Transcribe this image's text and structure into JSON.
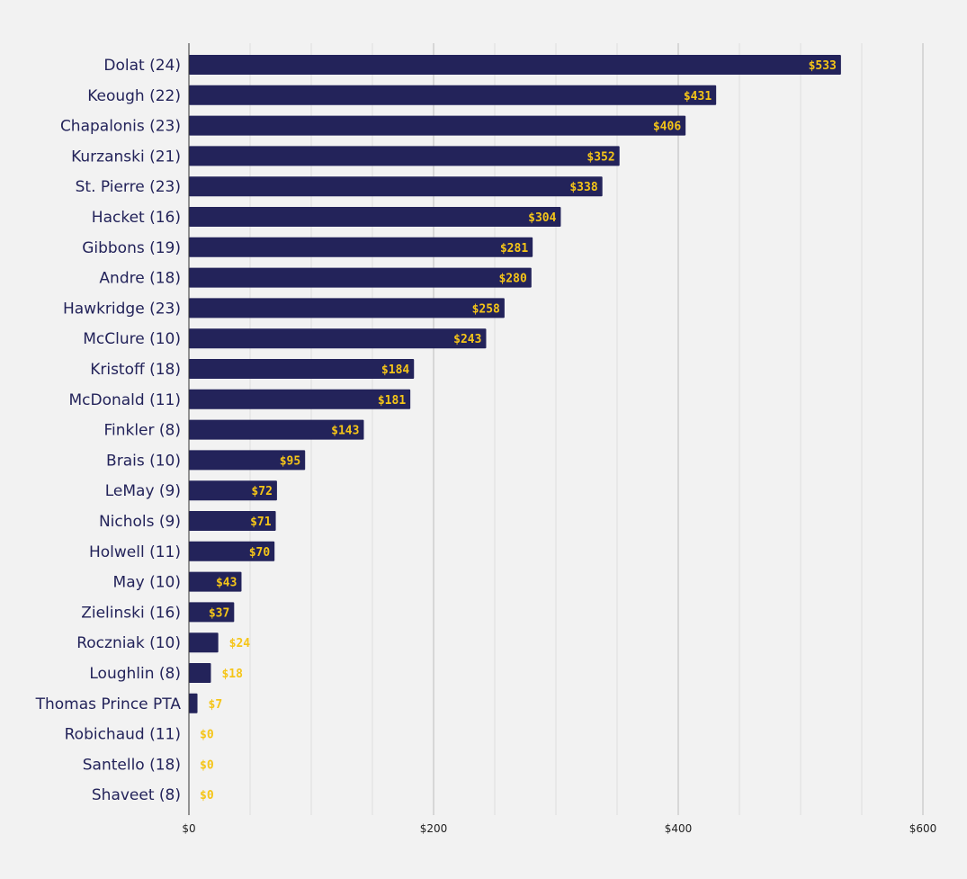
{
  "colors": {
    "background": "#f2f2f2",
    "bar": "#23235a",
    "value_label": "#f5c518",
    "major_grid": "#bcbcbc",
    "minor_grid": "#dddddd",
    "axis": "#333333",
    "category_text": "#23235a"
  },
  "chart_data": {
    "type": "bar",
    "orientation": "horizontal",
    "title": "",
    "xlabel": "",
    "ylabel": "",
    "categories": [
      "Dolat (24)",
      "Keough (22)",
      "Chapalonis (23)",
      "Kurzanski (21)",
      "St. Pierre (23)",
      "Hacket (16)",
      "Gibbons (19)",
      "Andre (18)",
      "Hawkridge (23)",
      "McClure (10)",
      "Kristoff (18)",
      "McDonald (11)",
      "Finkler (8)",
      "Brais (10)",
      "LeMay (9)",
      "Nichols (9)",
      "Holwell (11)",
      "May (10)",
      "Zielinski (16)",
      "Roczniak (10)",
      "Loughlin (8)",
      "Thomas Prince PTA",
      "Robichaud (11)",
      "Santello (18)",
      "Shaveet (8)"
    ],
    "values": [
      533,
      431,
      406,
      352,
      338,
      304,
      281,
      280,
      258,
      243,
      184,
      181,
      143,
      95,
      72,
      71,
      70,
      43,
      37,
      24,
      18,
      7,
      0,
      0,
      0
    ],
    "value_labels": [
      "$533",
      "$431",
      "$406",
      "$352",
      "$338",
      "$304",
      "$281",
      "$280",
      "$258",
      "$243",
      "$184",
      "$181",
      "$143",
      "$95",
      "$72",
      "$71",
      "$70",
      "$43",
      "$37",
      "$24",
      "$18",
      "$7",
      "$0",
      "$0",
      "$0"
    ],
    "xlim": [
      0,
      600
    ],
    "x_ticks": [
      0,
      200,
      400,
      600
    ],
    "x_tick_labels": [
      "$0",
      "$200",
      "$400",
      "$600"
    ],
    "minor_grid_step": 50,
    "grid": true
  }
}
